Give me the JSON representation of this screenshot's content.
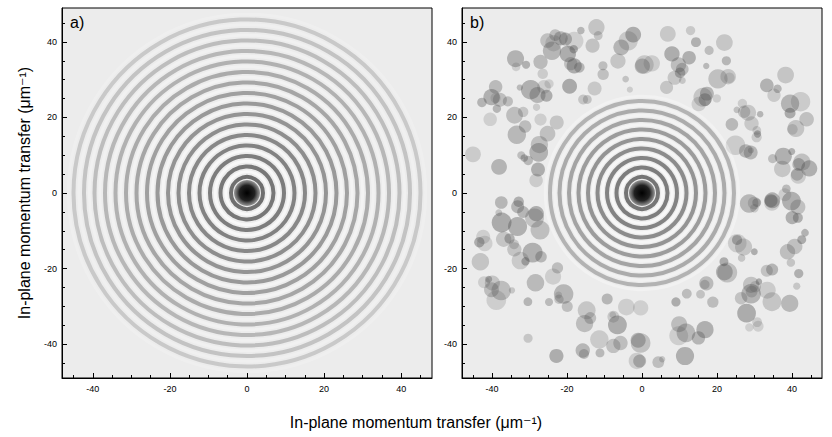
{
  "chart_data": [
    {
      "type": "image",
      "title": "a)",
      "xlabel": "In-plane momentum transfer (μm⁻¹)",
      "ylabel": "In-plane momentum transfer (μm⁻¹)",
      "xlim": [
        -48,
        48
      ],
      "ylim": [
        -49,
        49
      ],
      "xticks": [
        -40,
        -20,
        0,
        20,
        40
      ],
      "yticks": [
        -40,
        -20,
        0,
        20,
        40
      ]
    },
    {
      "type": "image",
      "title": "b)",
      "xlim": [
        -48,
        48
      ],
      "ylim": [
        -49,
        49
      ],
      "xticks": [
        -40,
        -20,
        0,
        20,
        40
      ],
      "yticks": [
        -40,
        -20,
        0,
        20,
        40
      ]
    }
  ]
}
